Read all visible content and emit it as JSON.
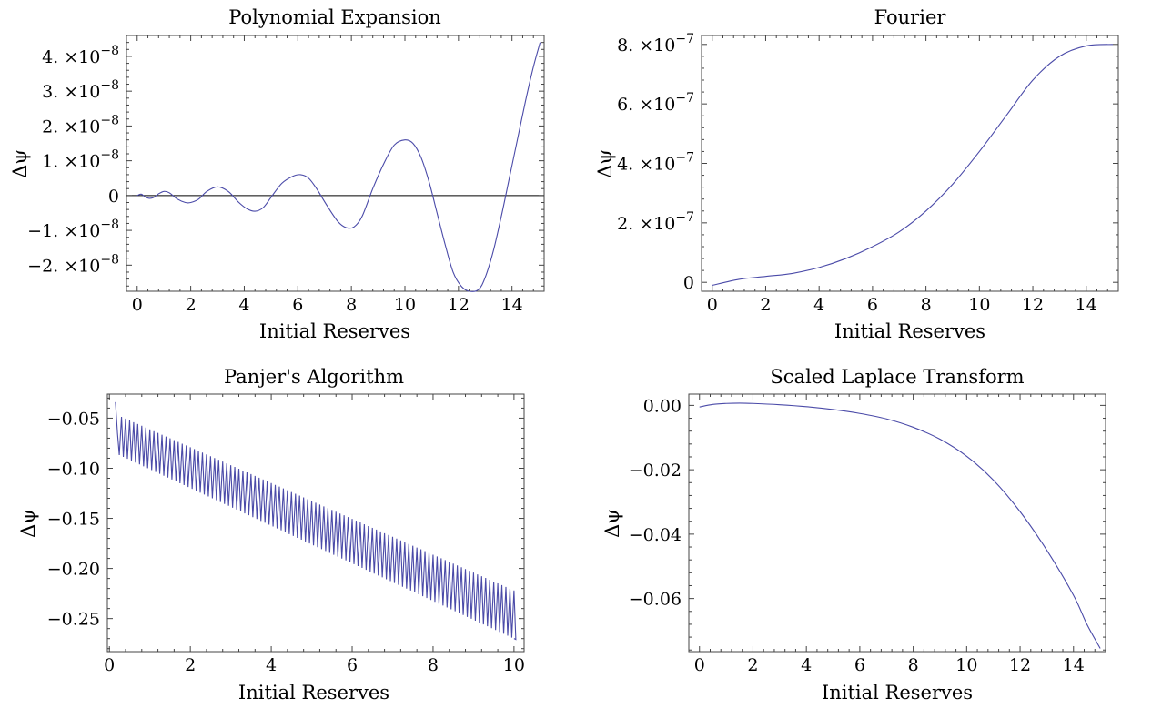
{
  "chart_data": [
    {
      "type": "line",
      "title": "Polynomial Expansion",
      "xlabel": "Initial Reserves",
      "ylabel": "Δψ",
      "xlim": [
        -0.4,
        15.2
      ],
      "ylim": [
        -2.75e-08,
        4.6e-08
      ],
      "xticks": [
        0,
        2,
        4,
        6,
        8,
        10,
        12,
        14
      ],
      "xtick_labels": [
        "0",
        "2",
        "4",
        "6",
        "8",
        "10",
        "12",
        "14"
      ],
      "yticks": [
        -2e-08,
        -1e-08,
        0,
        1e-08,
        2e-08,
        3e-08,
        4e-08
      ],
      "ytick_labels": [
        {
          "mantissa": "−2.",
          "base": "×10",
          "exp": "−8"
        },
        {
          "mantissa": "−1.",
          "base": "×10",
          "exp": "−8"
        },
        {
          "mantissa": "0",
          "base": "",
          "exp": ""
        },
        {
          "mantissa": "1.",
          "base": "×10",
          "exp": "−8"
        },
        {
          "mantissa": "2.",
          "base": "×10",
          "exp": "−8"
        },
        {
          "mantissa": "3.",
          "base": "×10",
          "exp": "−8"
        },
        {
          "mantissa": "4.",
          "base": "×10",
          "exp": "−8"
        }
      ],
      "zero_line": true,
      "series": [
        {
          "color": "#4a4aa8",
          "x": [
            0,
            0.15,
            0.3,
            0.45,
            0.6,
            0.8,
            1.0,
            1.2,
            1.5,
            1.8,
            2.0,
            2.3,
            2.6,
            3.0,
            3.4,
            3.8,
            4.1,
            4.4,
            4.7,
            5.0,
            5.4,
            5.8,
            6.1,
            6.4,
            6.7,
            7.1,
            7.5,
            7.8,
            8.1,
            8.4,
            8.8,
            9.2,
            9.6,
            10.0,
            10.3,
            10.6,
            10.9,
            11.2,
            11.5,
            11.8,
            12.1,
            12.4,
            12.75,
            13.0,
            13.3,
            13.6,
            13.9,
            14.2,
            14.5,
            14.8,
            15.05
          ],
          "y": [
            0,
            4e-10,
            -4e-10,
            -8e-10,
            -6e-10,
            5e-10,
            1.2e-09,
            8e-10,
            -1e-09,
            -2e-09,
            -2e-09,
            -1e-09,
            1.2e-09,
            2.5e-09,
            1.2e-09,
            -2e-09,
            -3.8e-09,
            -4.5e-09,
            -3.5e-09,
            -5e-10,
            3.5e-09,
            5.5e-09,
            6e-09,
            5e-09,
            2e-09,
            -3e-09,
            -7.5e-09,
            -9.2e-09,
            -9e-09,
            -6e-09,
            2e-09,
            9e-09,
            1.45e-08,
            1.6e-08,
            1.5e-08,
            1.1e-08,
            4e-09,
            -5e-09,
            -1.4e-08,
            -2.2e-08,
            -2.6e-08,
            -2.75e-08,
            -2.7e-08,
            -2.35e-08,
            -1.6e-08,
            -6e-09,
            5e-09,
            1.6e-08,
            2.7e-08,
            3.7e-08,
            4.4e-08
          ]
        }
      ]
    },
    {
      "type": "line",
      "title": "Fourier",
      "xlabel": "Initial Reserves",
      "ylabel": "Δψ",
      "xlim": [
        -0.4,
        15.2
      ],
      "ylim": [
        -3e-08,
        8.3e-07
      ],
      "xticks": [
        0,
        2,
        4,
        6,
        8,
        10,
        12,
        14
      ],
      "xtick_labels": [
        "0",
        "2",
        "4",
        "6",
        "8",
        "10",
        "12",
        "14"
      ],
      "yticks": [
        0,
        2e-07,
        4e-07,
        6e-07,
        8e-07
      ],
      "ytick_labels": [
        {
          "mantissa": "0",
          "base": "",
          "exp": ""
        },
        {
          "mantissa": "2.",
          "base": "×10",
          "exp": "−7"
        },
        {
          "mantissa": "4.",
          "base": "×10",
          "exp": "−7"
        },
        {
          "mantissa": "6.",
          "base": "×10",
          "exp": "−7"
        },
        {
          "mantissa": "8.",
          "base": "×10",
          "exp": "−7"
        }
      ],
      "zero_line": false,
      "series": [
        {
          "color": "#4a4aa8",
          "x": [
            0,
            1,
            2,
            3,
            4,
            5,
            6,
            7,
            8,
            9,
            10,
            11,
            12,
            13,
            14,
            15
          ],
          "y": [
            -1e-08,
            1e-08,
            2e-08,
            3e-08,
            5e-08,
            8e-08,
            1.2e-07,
            1.7e-07,
            2.4e-07,
            3.3e-07,
            4.4e-07,
            5.6e-07,
            6.8e-07,
            7.6e-07,
            7.95e-07,
            8e-07
          ]
        }
      ]
    },
    {
      "type": "line",
      "title": "Panjer's Algorithm",
      "xlabel": "Initial Reserves",
      "ylabel": "Δψ",
      "xlim": [
        -0.05,
        10.25
      ],
      "ylim": [
        -0.283,
        -0.026
      ],
      "xticks": [
        0,
        2,
        4,
        6,
        8,
        10
      ],
      "xtick_labels": [
        "0",
        "2",
        "4",
        "6",
        "8",
        "10"
      ],
      "yticks": [
        -0.25,
        -0.2,
        -0.15,
        -0.1,
        -0.05
      ],
      "ytick_labels": [
        {
          "mantissa": "−0.25",
          "base": "",
          "exp": ""
        },
        {
          "mantissa": "−0.20",
          "base": "",
          "exp": ""
        },
        {
          "mantissa": "−0.15",
          "base": "",
          "exp": ""
        },
        {
          "mantissa": "−0.10",
          "base": "",
          "exp": ""
        },
        {
          "mantissa": "−0.05",
          "base": "",
          "exp": ""
        }
      ],
      "zero_line": false,
      "series": [
        {
          "color": "#4a4aa8",
          "sawtooth": {
            "x_start": 0.15,
            "x_end": 10.0,
            "period": 0.1,
            "upper": {
              "x": [
                0.15,
                10.0
              ],
              "y": [
                -0.046,
                -0.222
              ]
            },
            "lower": {
              "x": [
                0.15,
                10.0
              ],
              "y": [
                -0.085,
                -0.27
              ]
            },
            "start_point": {
              "x": 0.15,
              "y": -0.034
            }
          }
        }
      ]
    },
    {
      "type": "line",
      "title": "Scaled Laplace Transform",
      "xlabel": "Initial Reserves",
      "ylabel": "Δψ",
      "xlim": [
        -0.4,
        15.2
      ],
      "ylim": [
        -0.0765,
        0.0035
      ],
      "xticks": [
        0,
        2,
        4,
        6,
        8,
        10,
        12,
        14
      ],
      "xtick_labels": [
        "0",
        "2",
        "4",
        "6",
        "8",
        "10",
        "12",
        "14"
      ],
      "yticks": [
        -0.06,
        -0.04,
        -0.02,
        0.0
      ],
      "ytick_labels": [
        {
          "mantissa": "−0.06",
          "base": "",
          "exp": ""
        },
        {
          "mantissa": "−0.04",
          "base": "",
          "exp": ""
        },
        {
          "mantissa": "−0.02",
          "base": "",
          "exp": ""
        },
        {
          "mantissa": "0.00",
          "base": "",
          "exp": ""
        }
      ],
      "zero_line": false,
      "series": [
        {
          "color": "#4a4aa8",
          "x": [
            0,
            0.5,
            1,
            1.5,
            2,
            3,
            4,
            5,
            6,
            7,
            8,
            9,
            10,
            11,
            12,
            13,
            14,
            14.5,
            15
          ],
          "y": [
            -0.0005,
            0.0003,
            0.0006,
            0.0007,
            0.0006,
            0.0002,
            -0.0004,
            -0.0013,
            -0.0025,
            -0.0042,
            -0.0068,
            -0.0105,
            -0.0158,
            -0.0232,
            -0.033,
            -0.045,
            -0.059,
            -0.068,
            -0.0755
          ]
        }
      ]
    }
  ]
}
